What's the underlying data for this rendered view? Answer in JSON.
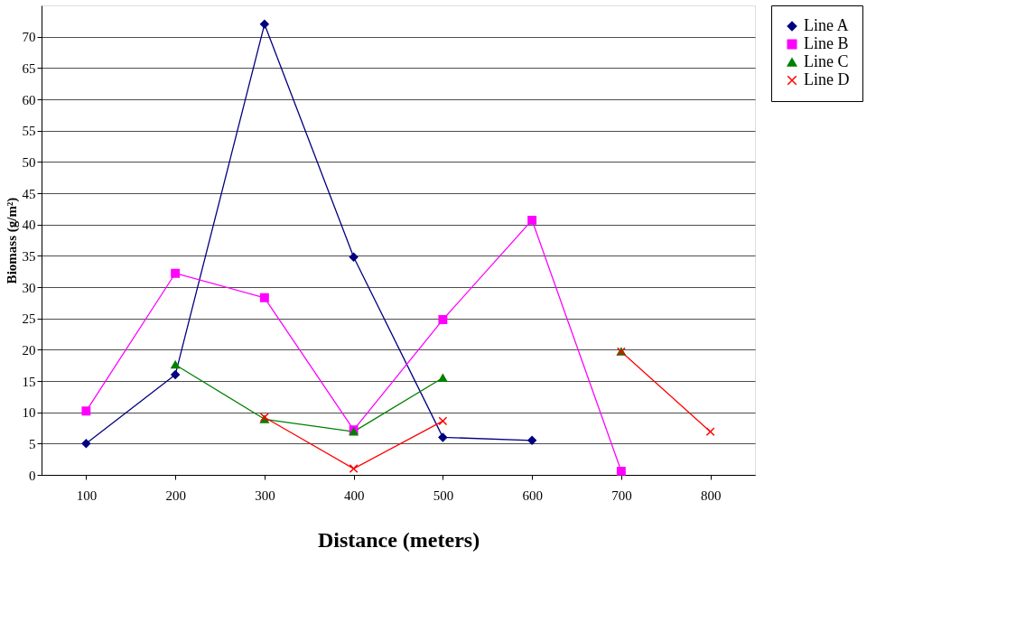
{
  "chart_data": {
    "type": "line",
    "xlabel": "Distance (meters)",
    "ylabel": "Biomass (g/m²)",
    "categories": [
      "100",
      "200",
      "300",
      "400",
      "500",
      "600",
      "700",
      "800"
    ],
    "series": [
      {
        "name": "Line A",
        "color": "#000080",
        "marker": "diamond",
        "values": [
          5,
          16,
          72,
          34.8,
          6,
          5.5,
          null,
          null
        ]
      },
      {
        "name": "Line B",
        "color": "#ff00ff",
        "marker": "square",
        "values": [
          10.2,
          32.2,
          28.3,
          7.2,
          24.8,
          40.7,
          0.6,
          null
        ]
      },
      {
        "name": "Line C",
        "color": "#008000",
        "marker": "triangle",
        "values": [
          null,
          17.6,
          8.9,
          6.9,
          15.5,
          null,
          19.7,
          null
        ]
      },
      {
        "name": "Line D",
        "color": "#ff0000",
        "marker": "cross",
        "values": [
          null,
          null,
          9.2,
          1,
          8.6,
          null,
          19.7,
          6.9
        ]
      }
    ],
    "ylim": [
      0,
      75
    ],
    "yticks": [
      0,
      5,
      10,
      15,
      20,
      25,
      30,
      35,
      40,
      45,
      50,
      55,
      60,
      65,
      70
    ],
    "grid": "y",
    "legend": "right",
    "line_style": "solid"
  }
}
